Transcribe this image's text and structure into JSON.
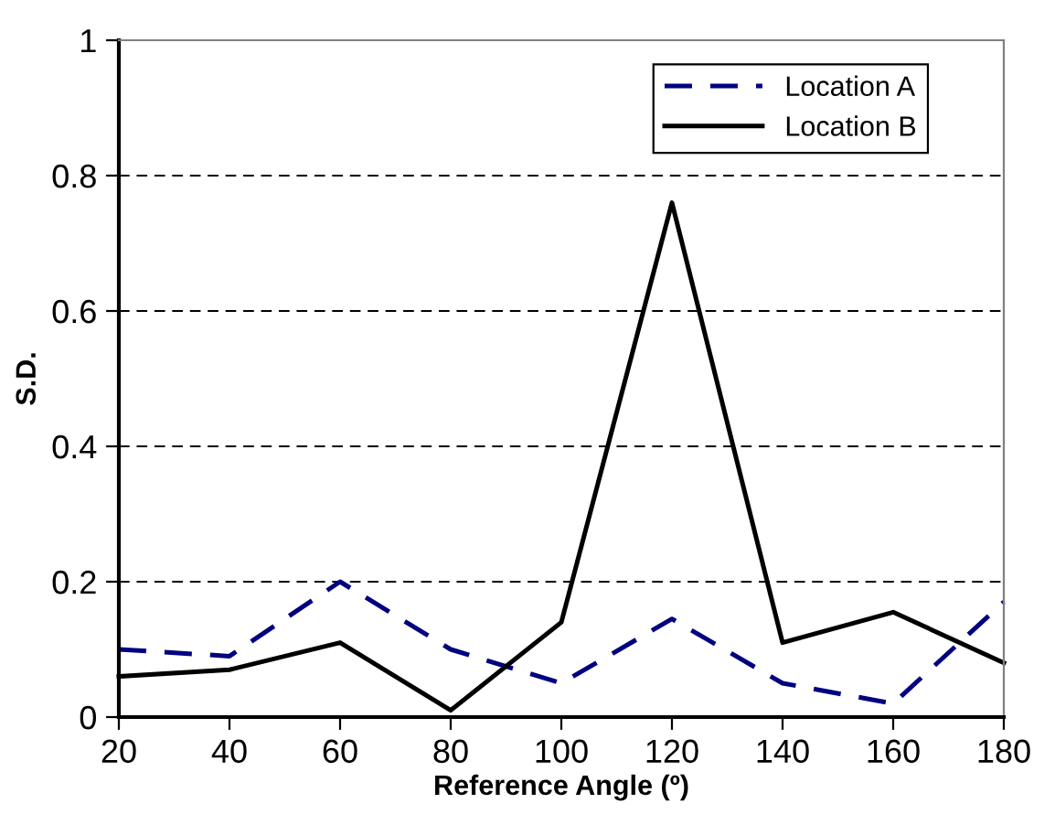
{
  "chart_data": {
    "type": "line",
    "xlabel": "Reference Angle (º)",
    "ylabel": "S.D.",
    "x": [
      20,
      40,
      60,
      80,
      100,
      120,
      140,
      160,
      180
    ],
    "series": [
      {
        "name": "Location A",
        "color": "#000080",
        "line_style": "dashed",
        "values": [
          0.1,
          0.09,
          0.2,
          0.1,
          0.05,
          0.145,
          0.05,
          0.02,
          0.17
        ]
      },
      {
        "name": "Location B",
        "color": "#000000",
        "line_style": "solid",
        "values": [
          0.06,
          0.07,
          0.11,
          0.01,
          0.14,
          0.76,
          0.11,
          0.155,
          0.08
        ]
      }
    ],
    "xlim": [
      20,
      180
    ],
    "xticks": [
      20,
      40,
      60,
      80,
      100,
      120,
      140,
      160,
      180
    ],
    "ylim": [
      0,
      1
    ],
    "yticks": [
      0,
      {
        "value": 0.2,
        "label": "0.2"
      },
      {
        "value": 0.4,
        "label": "0.4"
      },
      {
        "value": 0.6,
        "label": "0.6"
      },
      {
        "value": 0.8,
        "label": "0.8"
      },
      1
    ],
    "grid": "y",
    "legend": "top right",
    "marker": "none"
  }
}
